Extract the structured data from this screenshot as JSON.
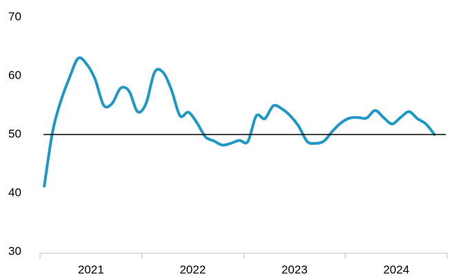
{
  "chart_data": {
    "type": "line",
    "categories": [
      null,
      null,
      null,
      null,
      null,
      null,
      null,
      null,
      null,
      null,
      null,
      null,
      null,
      null,
      null,
      null,
      null,
      null,
      null,
      null,
      null,
      null,
      null,
      null,
      null,
      null,
      null,
      null,
      null,
      null,
      null,
      null,
      null,
      null,
      null,
      null,
      null,
      null,
      null,
      null,
      null,
      null,
      null,
      null,
      null,
      null,
      null
    ],
    "year_labels": [
      "2021",
      "2022",
      "2023",
      "2024"
    ],
    "series": [
      {
        "color": "#1f97c7",
        "values": [
          41.2,
          50.6,
          55.9,
          59.8,
          63,
          62,
          59.4,
          55,
          55.3,
          57.9,
          57.4,
          53.9,
          55.3,
          60.6,
          60.6,
          57.6,
          53.2,
          53.8,
          52,
          49.6,
          48.9,
          48.2,
          48.5,
          49,
          48.8,
          53.2,
          52.7,
          54.9,
          54.4,
          53.2,
          51.4,
          48.8,
          48.5,
          48.9,
          50.6,
          52,
          52.8,
          52.9,
          52.8,
          54.1,
          52.9,
          51.8,
          52.9,
          53.9,
          52.7,
          51.8,
          50
        ]
      }
    ],
    "ylim": [
      30,
      70
    ],
    "yticks": [
      30,
      40,
      50,
      60,
      70
    ],
    "reference_line": 50,
    "reference_color": "#000000"
  }
}
